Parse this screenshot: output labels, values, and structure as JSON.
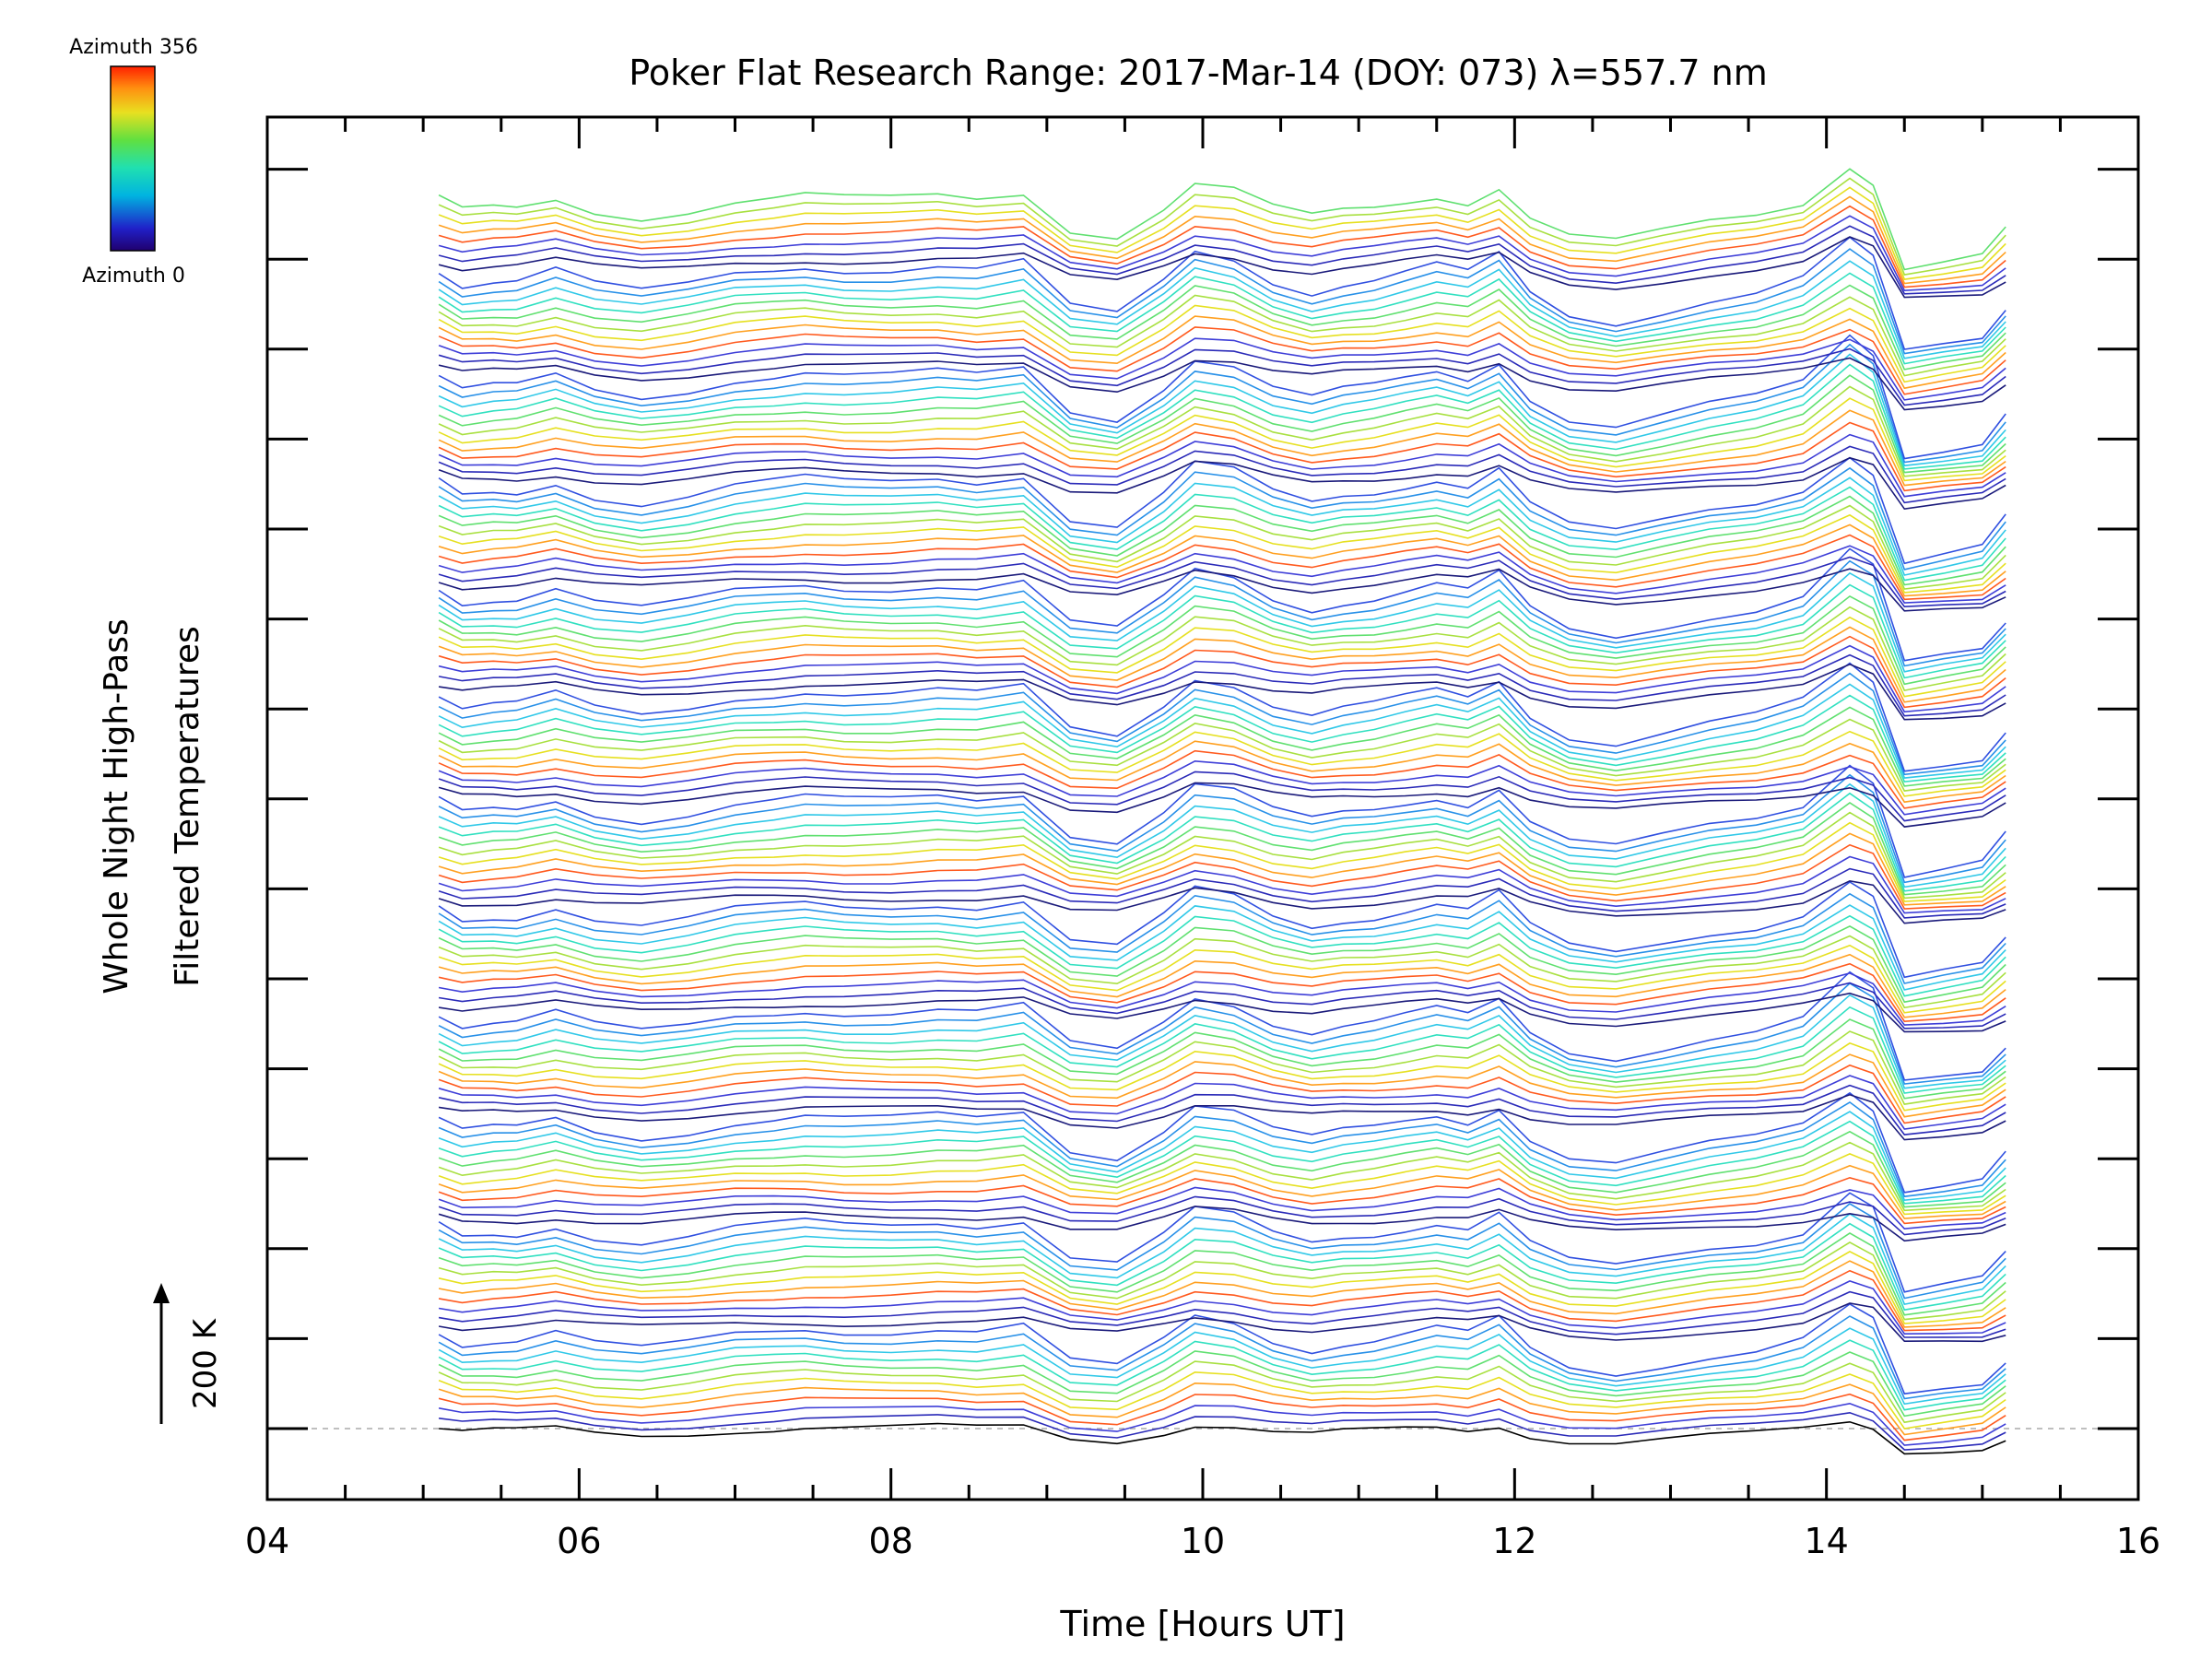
{
  "chart_data": {
    "type": "line",
    "title": "Poker Flat Research Range: 2017-Mar-14 (DOY: 073) λ=557.7 nm",
    "xlabel": "Time [Hours UT]",
    "ylabel_line1": "Whole Night High-Pass",
    "ylabel_line2": "Filtered Temperatures",
    "xlim": [
      4,
      16
    ],
    "x_tick_labels": [
      "04",
      "06",
      "08",
      "10",
      "12",
      "14",
      "16"
    ],
    "x_tick_values": [
      4,
      6,
      8,
      10,
      12,
      14,
      16
    ],
    "scale_label": "200 K",
    "colorbar": {
      "top_label": "Azimuth 356",
      "bottom_label": "Azimuth 0",
      "colormap": "rainbow"
    },
    "baseline": "dashed",
    "n_series": 140,
    "x": [
      5.1,
      5.25,
      5.45,
      5.6,
      5.85,
      6.1,
      6.4,
      6.7,
      7.0,
      7.25,
      7.45,
      7.7,
      8.0,
      8.3,
      8.55,
      8.85,
      9.15,
      9.45,
      9.75,
      9.95,
      10.2,
      10.45,
      10.7,
      10.9,
      11.1,
      11.3,
      11.5,
      11.7,
      11.9,
      12.1,
      12.35,
      12.65,
      12.95,
      13.25,
      13.55,
      13.85,
      14.15,
      14.3,
      14.5,
      14.75,
      15.0,
      15.15
    ],
    "reference_profile_K": [
      0,
      -4,
      -3,
      -3,
      0,
      -4,
      -6,
      -4,
      -1,
      0,
      1,
      0,
      0,
      1,
      0,
      2,
      -10,
      -12,
      -3,
      5,
      3,
      -3,
      -6,
      -4,
      -3,
      -1,
      1,
      -1,
      4,
      -6,
      -12,
      -14,
      -11,
      -8,
      -6,
      -2,
      5,
      0,
      -22,
      -20,
      -18,
      -10
    ],
    "azimuth_cycle": [
      {
        "range": [
          0,
          9
        ],
        "color_order": "low-to-high"
      },
      {
        "range": [
          10,
          139
        ],
        "color_order": "repeating"
      }
    ],
    "notes": "Stacked high-pass filtered temperature traces offset vertically; colour encodes azimuth 0–356."
  },
  "colors": {
    "frame": "#000000",
    "baseline": "#aaaaaa",
    "background": "#ffffff"
  }
}
